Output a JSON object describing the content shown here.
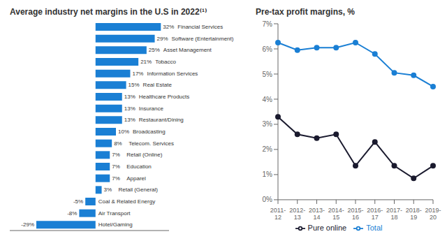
{
  "chart_data": [
    {
      "type": "bar",
      "orientation": "horizontal",
      "title": "Average industry net margins in the U.S in 2022⁽¹⁾",
      "categories": [
        "Financial Services",
        "Software (Entertainment)",
        "Asset Management",
        "Tobacco",
        "Information Services",
        "Real Estate",
        "Healthcare Products",
        "Insurance",
        "Restaurant/Dining",
        "Broadcasting",
        "Telecom. Services",
        "Retail (Online)",
        "Education",
        "Apparel",
        "Retail (General)",
        "Coal & Related Energy",
        "Air Transport",
        "Hotel/Gaming"
      ],
      "values": [
        32,
        29,
        25,
        21,
        17,
        15,
        13,
        13,
        13,
        10,
        8,
        7,
        7,
        7,
        3,
        -5,
        -8,
        -29
      ],
      "value_labels": [
        "32%",
        "29%",
        "25%",
        "21%",
        "17%",
        "15%",
        "13%",
        "13%",
        "13%",
        "10%",
        "8%",
        "7%",
        "7%",
        "7%",
        "3%",
        "-5%",
        "-8%",
        "-29%"
      ],
      "color": "#1a7fd4",
      "xlim": [
        -42,
        36
      ],
      "data_labels": true,
      "tick_labels": false,
      "grid": false
    },
    {
      "type": "line",
      "title": "Pre-tax profit margins, %",
      "categories": [
        "2011-\n12",
        "2012-\n13",
        "2013-\n14",
        "2014-\n15",
        "2015-\n16",
        "2016-\n17",
        "2017-\n18",
        "2018-\n19",
        "2019-\n20"
      ],
      "series": [
        {
          "name": "Total",
          "color": "#1a7fd4",
          "marker": "circle",
          "values": [
            6.25,
            5.95,
            6.05,
            6.05,
            6.25,
            5.8,
            5.05,
            4.95,
            4.5
          ]
        },
        {
          "name": "Pure online",
          "color": "#1a1a2e",
          "marker": "circle",
          "values": [
            3.3,
            2.6,
            2.45,
            2.6,
            1.35,
            2.3,
            1.35,
            0.85,
            1.35
          ]
        }
      ],
      "ylim": [
        0,
        7
      ],
      "yticks": [
        {
          "value": 0,
          "label": "0%"
        },
        {
          "value": 1,
          "label": "1%"
        },
        {
          "value": 2,
          "label": "2%"
        },
        {
          "value": 3,
          "label": "3%"
        },
        {
          "value": 4,
          "label": "4%"
        },
        {
          "value": 5,
          "label": "5%"
        },
        {
          "value": 6,
          "label": "6%"
        },
        {
          "value": 7,
          "label": "7%"
        }
      ],
      "grid": false,
      "legend": "bottom"
    }
  ]
}
